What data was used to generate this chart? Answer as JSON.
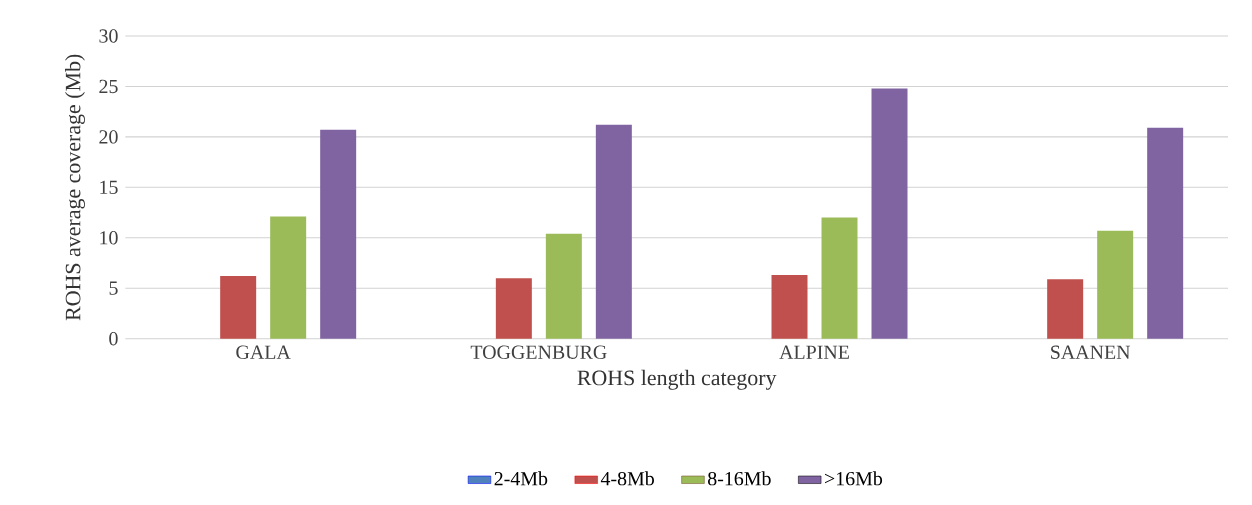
{
  "chart_data": {
    "type": "bar",
    "xlabel": "ROHS length category",
    "ylabel": "ROHS average coverage (Mb)",
    "categories": [
      "GALA",
      "TOGGENBURG",
      "ALPINE",
      "SAANEN"
    ],
    "series": [
      {
        "name": "2-4Mb",
        "color": "#4f81bd",
        "values": [
          0,
          0,
          0,
          0
        ]
      },
      {
        "name": "4-8Mb",
        "color": "#c0504d",
        "values": [
          6.2,
          6.0,
          6.3,
          5.9
        ]
      },
      {
        "name": "8-16Mb",
        "color": "#9bbb59",
        "values": [
          12.1,
          10.4,
          12.0,
          10.7
        ]
      },
      {
        "name": ">16Mb",
        "color": "#8064a2",
        "values": [
          20.7,
          21.2,
          24.8,
          20.9
        ]
      }
    ],
    "ylim": [
      0,
      30
    ],
    "yticks": [
      0,
      5,
      10,
      15,
      20,
      25,
      30
    ],
    "grid": "y",
    "legend": "bottom"
  }
}
